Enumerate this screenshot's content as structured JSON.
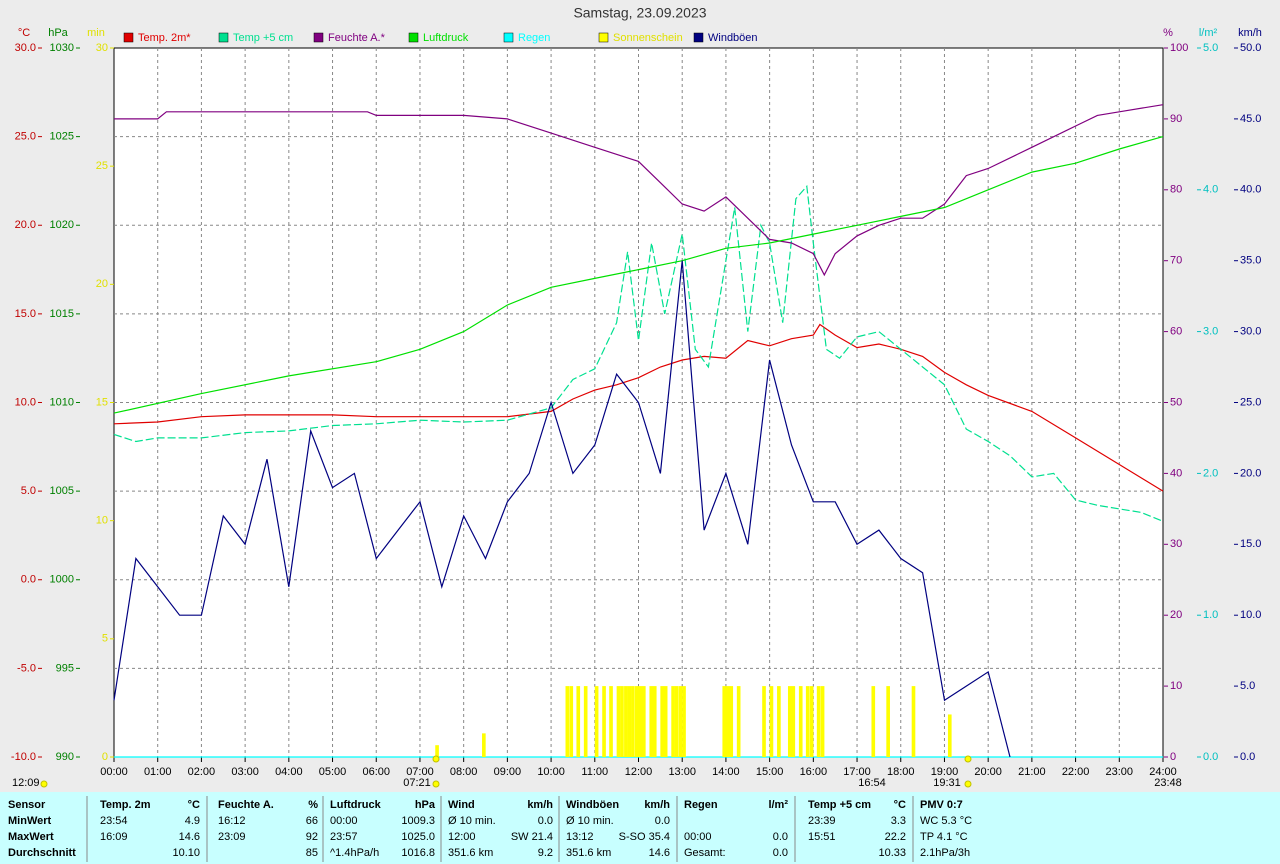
{
  "chart_data": {
    "type": "line",
    "title": "Samstag, 23.09.2023",
    "grid": true,
    "xlim": [
      0,
      24
    ],
    "xticks": [
      {
        "value": 0,
        "label": "00:00"
      },
      {
        "value": 1,
        "label": "01:00"
      },
      {
        "value": 2,
        "label": "02:00"
      },
      {
        "value": 3,
        "label": "03:00"
      },
      {
        "value": 4,
        "label": "04:00"
      },
      {
        "value": 5,
        "label": "05:00"
      },
      {
        "value": 6,
        "label": "06:00"
      },
      {
        "value": 7,
        "label": "07:00"
      },
      {
        "value": 8,
        "label": "08:00"
      },
      {
        "value": 9,
        "label": "09:00"
      },
      {
        "value": 10,
        "label": "10:00"
      },
      {
        "value": 11,
        "label": "11:00"
      },
      {
        "value": 12,
        "label": "12:00"
      },
      {
        "value": 13,
        "label": "13:00"
      },
      {
        "value": 14,
        "label": "14:00"
      },
      {
        "value": 15,
        "label": "15:00"
      },
      {
        "value": 16,
        "label": "16:00"
      },
      {
        "value": 17,
        "label": "17:00"
      },
      {
        "value": 18,
        "label": "18:00"
      },
      {
        "value": 19,
        "label": "19:00"
      },
      {
        "value": 20,
        "label": "20:00"
      },
      {
        "value": 21,
        "label": "21:00"
      },
      {
        "value": 22,
        "label": "22:00"
      },
      {
        "value": 23,
        "label": "23:00"
      },
      {
        "value": 24,
        "label": "24:00"
      }
    ],
    "axes": {
      "temp": {
        "unit": "°C",
        "color": "#c00000",
        "lim": [
          -10,
          30
        ],
        "ticks": [
          {
            "value": -10,
            "label": "-10.0"
          },
          {
            "value": -5,
            "label": "-5.0"
          },
          {
            "value": 0,
            "label": "0.0"
          },
          {
            "value": 5,
            "label": "5.0"
          },
          {
            "value": 10,
            "label": "10.0"
          },
          {
            "value": 15,
            "label": "15.0"
          },
          {
            "value": 20,
            "label": "20.0"
          },
          {
            "value": 25,
            "label": "25.0"
          },
          {
            "value": 30,
            "label": "30.0"
          }
        ]
      },
      "hpa": {
        "unit": "hPa",
        "color": "#008000",
        "lim": [
          990,
          1030
        ],
        "ticks": [
          990,
          995,
          1000,
          1005,
          1010,
          1015,
          1020,
          1025,
          1030
        ]
      },
      "min": {
        "unit": "min",
        "color": "#e0e000",
        "lim": [
          0,
          30
        ],
        "ticks": [
          0,
          5,
          10,
          15,
          20,
          25,
          30
        ]
      },
      "pct": {
        "unit": "%",
        "color": "#800080",
        "lim": [
          0,
          100
        ],
        "ticks": [
          0,
          10,
          20,
          30,
          40,
          50,
          60,
          70,
          80,
          90,
          100
        ]
      },
      "rain": {
        "unit": "l/m²",
        "color": "#00c0c0",
        "lim": [
          0,
          5
        ],
        "ticks": [
          {
            "value": 0,
            "label": "0.0"
          },
          {
            "value": 1,
            "label": "1.0"
          },
          {
            "value": 2,
            "label": "2.0"
          },
          {
            "value": 3,
            "label": "3.0"
          },
          {
            "value": 4,
            "label": "4.0"
          },
          {
            "value": 5,
            "label": "5.0"
          }
        ]
      },
      "kmh": {
        "unit": "km/h",
        "color": "#000080",
        "lim": [
          0,
          50
        ],
        "ticks": [
          {
            "value": 0,
            "label": "0.0"
          },
          {
            "value": 5,
            "label": "5.0"
          },
          {
            "value": 10,
            "label": "10.0"
          },
          {
            "value": 15,
            "label": "15.0"
          },
          {
            "value": 20,
            "label": "20.0"
          },
          {
            "value": 25,
            "label": "25.0"
          },
          {
            "value": 30,
            "label": "30.0"
          },
          {
            "value": 35,
            "label": "35.0"
          },
          {
            "value": 40,
            "label": "40.0"
          },
          {
            "value": 45,
            "label": "45.0"
          },
          {
            "value": 50,
            "label": "50.0"
          }
        ]
      }
    },
    "series": [
      {
        "name": "Temp. 2m*",
        "color": "#e00000",
        "axis": "temp",
        "x": [
          0,
          1,
          2,
          3,
          4,
          5,
          6,
          7,
          8,
          9,
          10,
          10.5,
          11,
          11.5,
          12,
          12.5,
          13,
          13.5,
          14,
          14.5,
          15,
          15.5,
          16,
          16.15,
          16.5,
          17,
          17.5,
          18,
          18.5,
          19,
          19.5,
          20,
          21,
          22,
          23,
          24
        ],
        "values": [
          8.8,
          8.9,
          9.2,
          9.3,
          9.3,
          9.3,
          9.2,
          9.2,
          9.2,
          9.2,
          9.5,
          10.2,
          10.7,
          11.0,
          11.4,
          12.0,
          12.4,
          12.6,
          12.5,
          13.5,
          13.2,
          13.6,
          13.8,
          14.4,
          13.8,
          13.1,
          13.3,
          13.0,
          12.6,
          11.7,
          11.0,
          10.4,
          9.5,
          8.0,
          6.5,
          5.0
        ]
      },
      {
        "name": "Temp +5 cm",
        "color": "#00e090",
        "axis": "temp",
        "dashed": true,
        "x": [
          0,
          0.5,
          1,
          2,
          3,
          4,
          5,
          6,
          7,
          8,
          9,
          10,
          10.5,
          11,
          11.5,
          11.75,
          12,
          12.3,
          12.6,
          13,
          13.3,
          13.6,
          14,
          14.2,
          14.5,
          14.8,
          15,
          15.3,
          15.6,
          15.85,
          16,
          16.3,
          16.6,
          17,
          17.5,
          18,
          18.5,
          19,
          19.5,
          20,
          20.5,
          21,
          21.5,
          22,
          22.5,
          23,
          23.5,
          24
        ],
        "values": [
          8.2,
          7.8,
          8.0,
          8.0,
          8.3,
          8.4,
          8.7,
          8.8,
          9.0,
          8.9,
          9.0,
          9.7,
          11.3,
          11.9,
          14.5,
          18.5,
          13.5,
          19.0,
          15.0,
          19.5,
          13.0,
          12.0,
          18.0,
          21.0,
          14.0,
          20.0,
          19.0,
          14.5,
          21.5,
          22.2,
          19.0,
          13.0,
          12.5,
          13.7,
          14.0,
          13.0,
          12.0,
          11.0,
          8.5,
          7.8,
          7.0,
          5.8,
          6.0,
          4.5,
          4.2,
          4.0,
          3.8,
          3.3
        ]
      },
      {
        "name": "Feuchte A.*",
        "color": "#800080",
        "axis": "pct",
        "x": [
          0,
          1,
          1.2,
          2,
          3,
          4,
          5,
          5.8,
          6,
          7,
          8,
          9,
          10,
          11,
          12,
          12.5,
          13,
          13.5,
          14,
          14.5,
          15,
          15.5,
          16,
          16.25,
          16.5,
          17,
          17.5,
          18,
          18.5,
          19,
          19.5,
          20,
          21,
          22,
          22.5,
          23,
          24
        ],
        "values": [
          90,
          90,
          91,
          91,
          91,
          91,
          91,
          91,
          90.5,
          90.5,
          90.5,
          90,
          88,
          86,
          84,
          81,
          78,
          77,
          79,
          76,
          73,
          72.5,
          71,
          68,
          71,
          73.5,
          75,
          76,
          76,
          78,
          82,
          83,
          86,
          89,
          90.5,
          91,
          92
        ]
      },
      {
        "name": "Luftdruck",
        "color": "#00e000",
        "axis": "hpa",
        "x": [
          0,
          2,
          4,
          6,
          7,
          8,
          9,
          10,
          11,
          12,
          13,
          14,
          15,
          16,
          17,
          18,
          19,
          20,
          21,
          22,
          23,
          24
        ],
        "values": [
          1009.4,
          1010.5,
          1011.5,
          1012.3,
          1013,
          1014,
          1015.5,
          1016.5,
          1017,
          1017.5,
          1018,
          1018.7,
          1019,
          1019.5,
          1020,
          1020.5,
          1021,
          1022,
          1023,
          1023.5,
          1024.3,
          1025
        ]
      },
      {
        "name": "Regen",
        "color": "#00ffff",
        "axis": "rain",
        "x": [
          0,
          24
        ],
        "values": [
          0,
          0
        ]
      },
      {
        "name": "Sonnenschein",
        "color": "#ffff00",
        "axis": "min",
        "type": "bar",
        "x": [
          7.35,
          8.42,
          10.33,
          10.42,
          10.58,
          10.75,
          11.0,
          11.17,
          11.33,
          11.5,
          11.58,
          11.67,
          11.75,
          11.83,
          11.92,
          12.0,
          12.08,
          12.25,
          12.33,
          12.5,
          12.58,
          12.75,
          12.83,
          12.92,
          13.0,
          13.92,
          14.0,
          14.08,
          14.25,
          14.83,
          15.0,
          15.17,
          15.42,
          15.5,
          15.67,
          15.83,
          15.92,
          16.08,
          16.17,
          17.33,
          17.67,
          18.25,
          19.08
        ],
        "values": [
          0.5,
          1.0,
          3,
          3,
          3,
          3,
          3,
          3,
          3,
          3,
          3,
          3,
          3,
          3,
          3,
          3,
          3,
          3,
          3,
          3,
          3,
          3,
          3,
          3,
          3,
          3,
          3,
          3,
          3,
          3,
          3,
          3,
          3,
          3,
          3,
          3,
          3,
          3,
          3,
          3,
          3,
          3,
          1.8
        ]
      },
      {
        "name": "Windböen",
        "color": "#000080",
        "axis": "kmh",
        "x": [
          0,
          0.5,
          1,
          1.5,
          2,
          2.5,
          3,
          3.5,
          4,
          4.5,
          5,
          5.5,
          6,
          6.5,
          7,
          7.5,
          8,
          8.5,
          9,
          9.5,
          10,
          10.5,
          11,
          11.5,
          12,
          12.5,
          13,
          13.5,
          14,
          14.5,
          15,
          15.5,
          16,
          16.5,
          17,
          17.5,
          18,
          18.5,
          19,
          19.5,
          20,
          20.5
        ],
        "values": [
          4,
          14,
          12,
          10,
          10,
          17,
          15,
          21,
          12,
          23,
          19,
          20,
          14,
          16,
          18,
          12,
          17,
          14,
          18,
          20,
          25,
          20,
          22,
          27,
          25,
          20,
          35,
          16,
          20,
          15,
          28,
          22,
          18,
          18,
          15,
          16,
          14,
          13,
          4,
          5,
          6,
          0
        ]
      }
    ],
    "annotations": [
      "12:09",
      "07:21",
      "16:54",
      "19:31",
      "23:48"
    ]
  },
  "table": {
    "columns": [
      {
        "title": "Sensor"
      },
      {
        "title": "Temp. 2m",
        "unit": "°C"
      },
      {
        "title": "Feuchte A.",
        "unit": "%"
      },
      {
        "title": "Luftdruck",
        "unit": "hPa"
      },
      {
        "title": "Wind",
        "unit": "km/h"
      },
      {
        "title": "Windböen",
        "unit": "km/h"
      },
      {
        "title": "Regen",
        "unit": "l/m²"
      },
      {
        "title": "Temp +5 cm",
        "unit": "°C"
      },
      {
        "title": "PMV 0:7"
      }
    ],
    "rows": [
      {
        "label": "MinWert",
        "cells": [
          {
            "time": "23:54",
            "value": "4.9"
          },
          {
            "time": "16:12",
            "value": "66"
          },
          {
            "time": "00:00",
            "value": "1009.3"
          },
          {
            "time": "Ø 10 min.",
            "value": "0.0"
          },
          {
            "time": "Ø 10 min.",
            "value": "0.0"
          },
          {},
          {
            "time": "23:39",
            "value": "3.3"
          },
          {
            "time": "WC 5.3 °C"
          }
        ]
      },
      {
        "label": "MaxWert",
        "cells": [
          {
            "time": "16:09",
            "value": "14.6"
          },
          {
            "time": "23:09",
            "value": "92"
          },
          {
            "time": "23:57",
            "value": "1025.0"
          },
          {
            "time": "12:00",
            "value": "SW 21.4"
          },
          {
            "time": "13:12",
            "value": "S-SO 35.4"
          },
          {
            "time": "00:00",
            "value": "0.0"
          },
          {
            "time": "15:51",
            "value": "22.2"
          },
          {
            "time": "TP 4.1 °C"
          }
        ]
      },
      {
        "label": "Durchschnitt",
        "cells": [
          {
            "value": "10.10"
          },
          {
            "value": "85"
          },
          {
            "time": "^1.4hPa/h",
            "value": "1016.8"
          },
          {
            "time": "351.6 km",
            "value": "9.2"
          },
          {
            "time": "351.6 km",
            "value": "14.6"
          },
          {
            "time": "Gesamt:",
            "value": "0.0"
          },
          {
            "value": "10.33"
          },
          {
            "time": "2.1hPa/3h"
          }
        ]
      }
    ]
  }
}
